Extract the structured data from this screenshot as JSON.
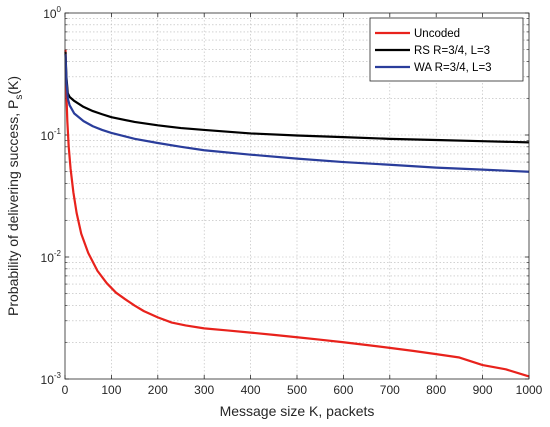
{
  "chart_data": {
    "type": "line",
    "xlabel": "Message size K, packets",
    "ylabel": {
      "main": "Probability of delivering success, P",
      "sub": "s",
      "suffix": "(K)"
    },
    "xlim": [
      0,
      1000
    ],
    "ylim": [
      0.001,
      1
    ],
    "yscale": "log",
    "grid": true,
    "legend_position": "top-right",
    "xticks": [
      0,
      100,
      200,
      300,
      400,
      500,
      600,
      700,
      800,
      900,
      1000
    ],
    "yticks": [
      {
        "value": 1,
        "base": "10",
        "exp": "0"
      },
      {
        "value": 0.1,
        "base": "10",
        "exp": "-1"
      },
      {
        "value": 0.01,
        "base": "10",
        "exp": "-2"
      },
      {
        "value": 0.001,
        "base": "10",
        "exp": "-3"
      }
    ],
    "series": [
      {
        "name": "Uncoded",
        "color": "#e8221c",
        "points": [
          [
            1,
            0.5
          ],
          [
            3,
            0.22
          ],
          [
            5,
            0.13
          ],
          [
            8,
            0.08
          ],
          [
            12,
            0.053
          ],
          [
            18,
            0.034
          ],
          [
            25,
            0.023
          ],
          [
            35,
            0.0155
          ],
          [
            50,
            0.0108
          ],
          [
            70,
            0.0077
          ],
          [
            90,
            0.0061
          ],
          [
            110,
            0.0051
          ],
          [
            130,
            0.0045
          ],
          [
            150,
            0.004
          ],
          [
            170,
            0.0036
          ],
          [
            200,
            0.0032
          ],
          [
            230,
            0.0029
          ],
          [
            260,
            0.00275
          ],
          [
            300,
            0.0026
          ],
          [
            350,
            0.0025
          ],
          [
            400,
            0.0024
          ],
          [
            450,
            0.0023
          ],
          [
            500,
            0.0022
          ],
          [
            550,
            0.0021
          ],
          [
            600,
            0.002
          ],
          [
            650,
            0.0019
          ],
          [
            700,
            0.0018
          ],
          [
            750,
            0.0017
          ],
          [
            800,
            0.0016
          ],
          [
            850,
            0.0015
          ],
          [
            900,
            0.0013
          ],
          [
            950,
            0.0012
          ],
          [
            1000,
            0.00105
          ]
        ]
      },
      {
        "name": "RS R=3/4, L=3",
        "color": "#000000",
        "points": [
          [
            1,
            0.48
          ],
          [
            3,
            0.3
          ],
          [
            6,
            0.22
          ],
          [
            10,
            0.205
          ],
          [
            20,
            0.19
          ],
          [
            40,
            0.17
          ],
          [
            60,
            0.157
          ],
          [
            80,
            0.148
          ],
          [
            100,
            0.14
          ],
          [
            150,
            0.128
          ],
          [
            200,
            0.12
          ],
          [
            250,
            0.114
          ],
          [
            300,
            0.11
          ],
          [
            400,
            0.103
          ],
          [
            500,
            0.099
          ],
          [
            600,
            0.096
          ],
          [
            700,
            0.093
          ],
          [
            800,
            0.091
          ],
          [
            900,
            0.089
          ],
          [
            1000,
            0.087
          ]
        ]
      },
      {
        "name": "WA R=3/4, L=3",
        "color": "#2a3d9b",
        "points": [
          [
            1,
            0.46
          ],
          [
            3,
            0.28
          ],
          [
            6,
            0.2
          ],
          [
            10,
            0.175
          ],
          [
            20,
            0.15
          ],
          [
            40,
            0.13
          ],
          [
            60,
            0.118
          ],
          [
            80,
            0.11
          ],
          [
            100,
            0.104
          ],
          [
            150,
            0.093
          ],
          [
            200,
            0.086
          ],
          [
            250,
            0.08
          ],
          [
            300,
            0.075
          ],
          [
            400,
            0.069
          ],
          [
            500,
            0.064
          ],
          [
            600,
            0.06
          ],
          [
            700,
            0.057
          ],
          [
            800,
            0.054
          ],
          [
            900,
            0.052
          ],
          [
            1000,
            0.05
          ]
        ]
      }
    ]
  }
}
